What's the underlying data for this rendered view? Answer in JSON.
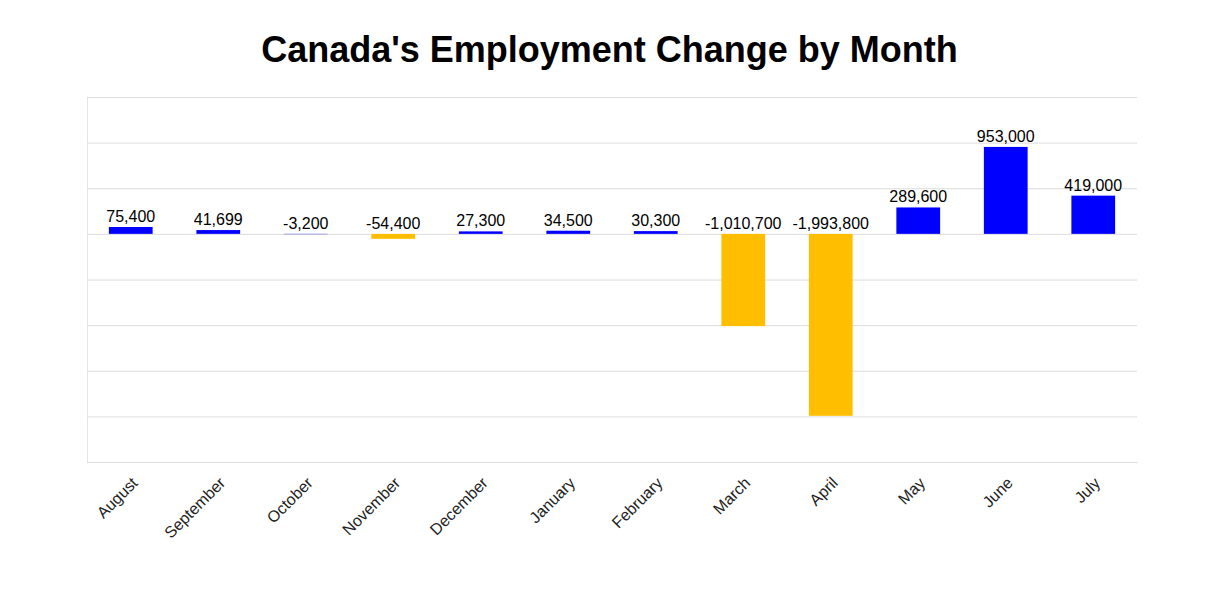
{
  "chart_data": {
    "type": "bar",
    "title": "Canada's Employment Change by Month",
    "categories": [
      "August",
      "September",
      "October",
      "November",
      "December",
      "January",
      "February",
      "March",
      "April",
      "May",
      "June",
      "July"
    ],
    "values": [
      75400,
      41699,
      -3200,
      -54400,
      27300,
      34500,
      30300,
      -1010700,
      -1993800,
      289600,
      953000,
      419000
    ],
    "value_labels": [
      "75,400",
      "41,699",
      "-3,200",
      "-54,400",
      "27,300",
      "34,500",
      "30,300",
      "-1,010,700",
      "-1,993,800",
      "289,600",
      "953,000",
      "419,000"
    ],
    "colors": [
      "#0000ff",
      "#0000ff",
      "#0000ff",
      "#ffbf00",
      "#0000ff",
      "#0000ff",
      "#0000ff",
      "#ffbf00",
      "#ffbf00",
      "#0000ff",
      "#0000ff",
      "#0000ff"
    ],
    "ylim": [
      -2500000,
      1500000
    ],
    "yticks": [
      -2500000,
      -2000000,
      -1500000,
      -1000000,
      -500000,
      0,
      500000,
      1000000,
      1500000
    ],
    "grid": true,
    "data_labels": true,
    "tick_labels": "x"
  }
}
